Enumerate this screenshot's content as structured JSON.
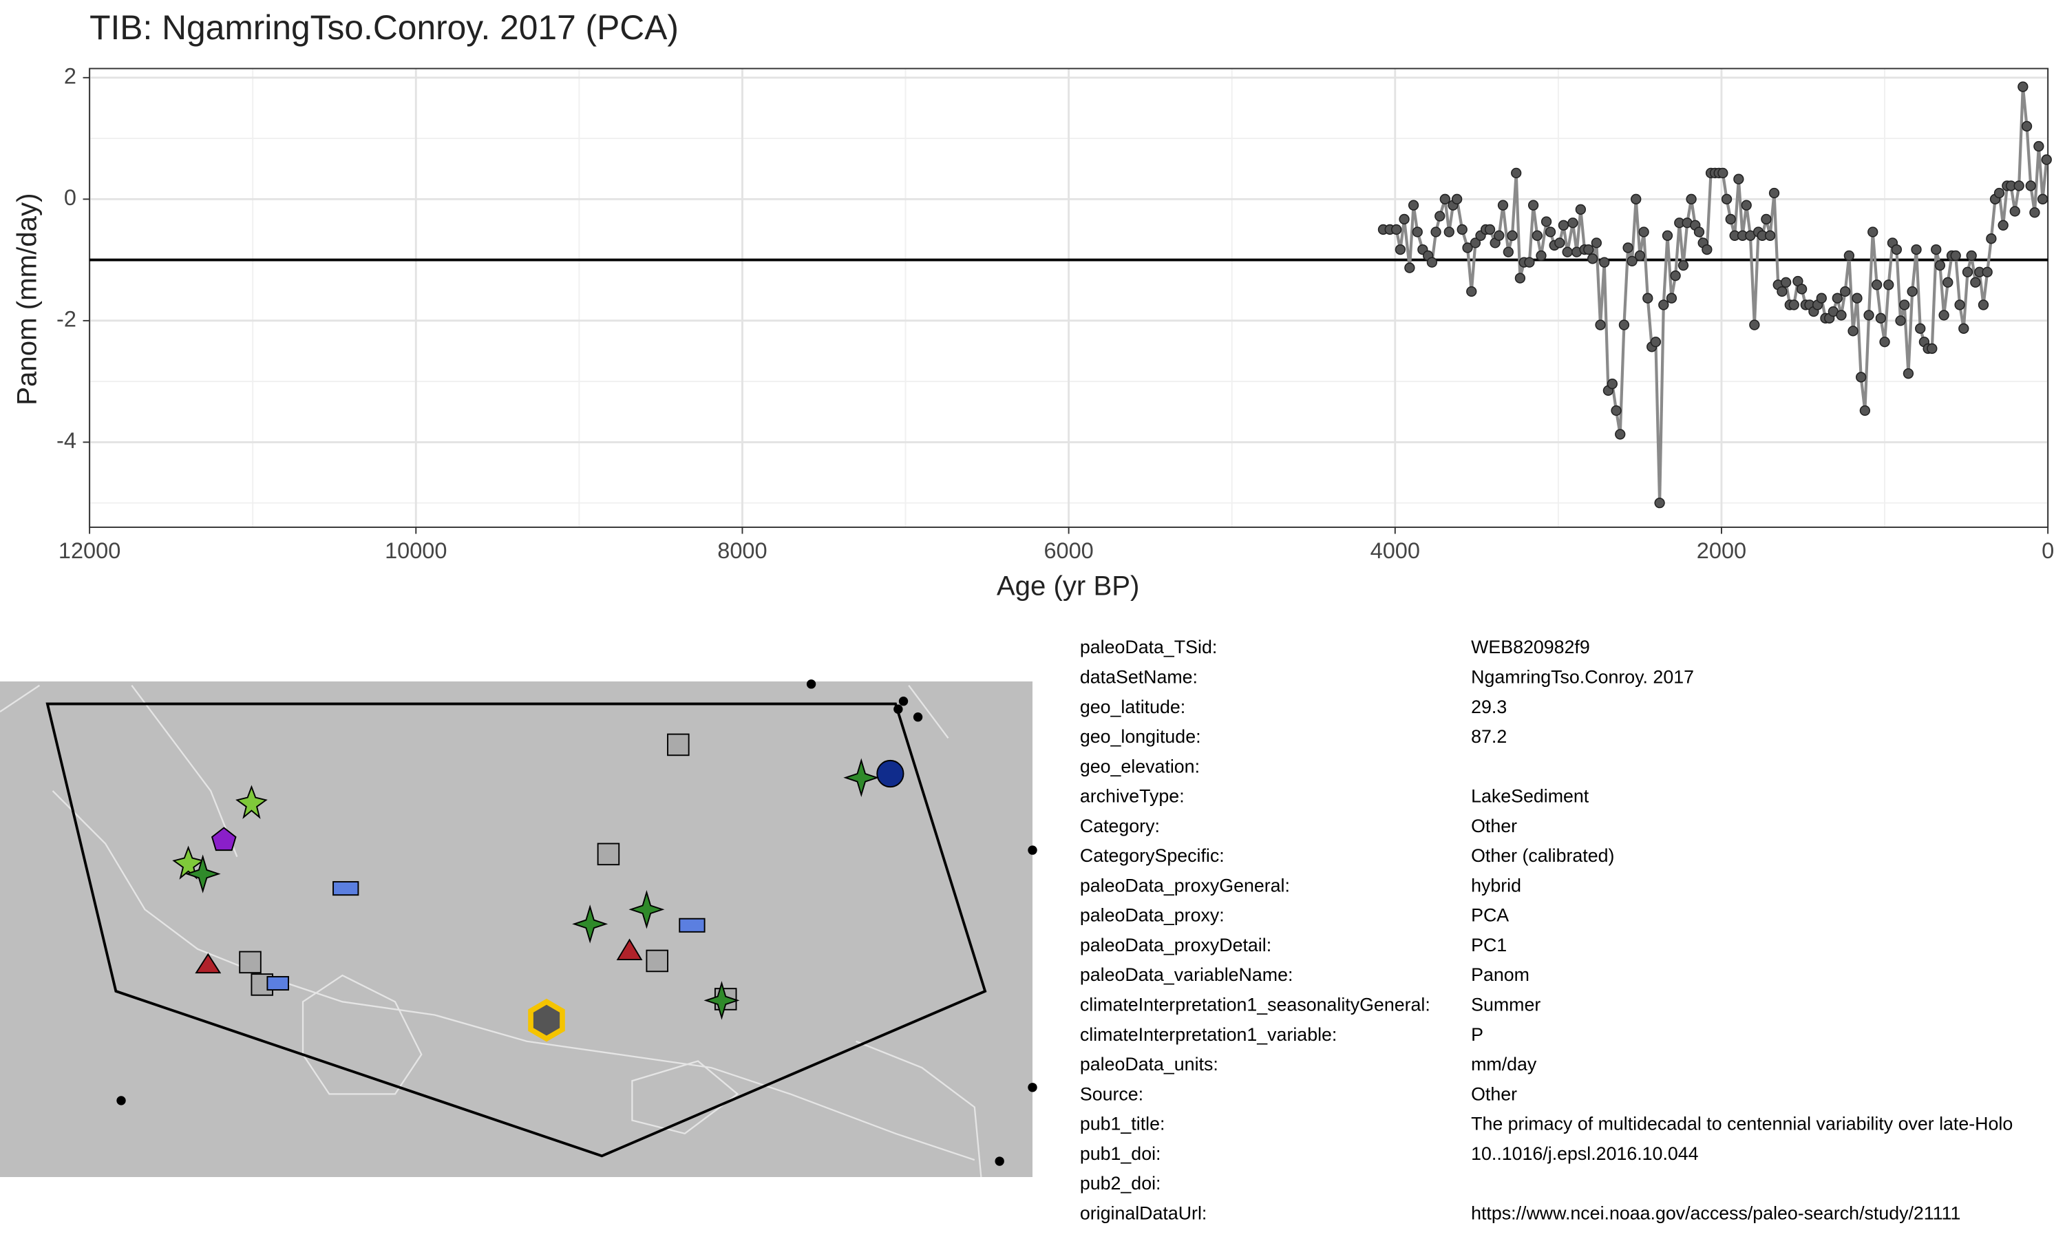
{
  "chart_data": {
    "type": "line",
    "title": "TIB: NgamringTso.Conroy. 2017 (PCA)",
    "x_label": "Age (yr BP)",
    "y_label": "Panom (mm/day)",
    "xlim": [
      12000,
      0
    ],
    "xticks": [
      12000,
      10000,
      8000,
      6000,
      4000,
      2000,
      0
    ],
    "ylim": [
      -5.4,
      2.15
    ],
    "yticks": [
      2,
      0,
      -2,
      -4
    ],
    "grid": true,
    "hline": -1,
    "color": "#555555",
    "x": [
      4073,
      4032,
      3992,
      3968,
      3944,
      3911,
      3887,
      3863,
      3831,
      3798,
      3774,
      3750,
      3726,
      3694,
      3669,
      3645,
      3621,
      3589,
      3556,
      3532,
      3508,
      3476,
      3444,
      3419,
      3387,
      3363,
      3339,
      3306,
      3282,
      3258,
      3234,
      3210,
      3177,
      3153,
      3129,
      3105,
      3073,
      3048,
      3024,
      2992,
      2968,
      2944,
      2911,
      2887,
      2863,
      2839,
      2815,
      2790,
      2766,
      2742,
      2718,
      2694,
      2669,
      2645,
      2621,
      2597,
      2573,
      2548,
      2524,
      2500,
      2476,
      2452,
      2427,
      2403,
      2379,
      2355,
      2331,
      2306,
      2282,
      2258,
      2234,
      2210,
      2185,
      2161,
      2137,
      2113,
      2089,
      2065,
      2040,
      2016,
      1992,
      1968,
      1944,
      1919,
      1895,
      1871,
      1847,
      1823,
      1798,
      1774,
      1750,
      1726,
      1702,
      1677,
      1653,
      1629,
      1605,
      1581,
      1556,
      1532,
      1508,
      1484,
      1460,
      1435,
      1411,
      1387,
      1363,
      1339,
      1315,
      1290,
      1266,
      1242,
      1218,
      1194,
      1169,
      1145,
      1121,
      1097,
      1073,
      1048,
      1024,
      1000,
      976,
      952,
      927,
      903,
      879,
      855,
      831,
      806,
      782,
      758,
      734,
      710,
      685,
      661,
      637,
      613,
      589,
      565,
      540,
      516,
      492,
      468,
      444,
      419,
      395,
      371,
      347,
      323,
      298,
      274,
      250,
      226,
      202,
      177,
      153,
      129,
      105,
      81,
      56,
      32,
      8
    ],
    "values": [
      -0.5,
      -0.5,
      -0.5,
      -0.83,
      -0.33,
      -1.13,
      -0.1,
      -0.54,
      -0.83,
      -0.93,
      -1.04,
      -0.54,
      -0.28,
      0,
      -0.54,
      -0.1,
      0,
      -0.5,
      -0.8,
      -1.52,
      -0.72,
      -0.6,
      -0.5,
      -0.5,
      -0.72,
      -0.6,
      -0.1,
      -0.87,
      -0.6,
      0.43,
      -1.3,
      -1.04,
      -1.04,
      -0.1,
      -0.6,
      -0.93,
      -0.37,
      -0.54,
      -0.76,
      -0.72,
      -0.43,
      -0.87,
      -0.39,
      -0.87,
      -0.17,
      -0.83,
      -0.83,
      -0.98,
      -0.72,
      -2.07,
      -1.04,
      -3.15,
      -3.04,
      -3.48,
      -3.87,
      -2.07,
      -0.8,
      -1.02,
      0,
      -0.93,
      -0.54,
      -1.63,
      -2.43,
      -2.35,
      -5,
      -1.74,
      -0.6,
      -1.63,
      -1.26,
      -0.39,
      -1.09,
      -0.39,
      0,
      -0.43,
      -0.54,
      -0.72,
      -0.83,
      0.43,
      0.43,
      0.43,
      0.43,
      0,
      -0.33,
      -0.6,
      0.33,
      -0.6,
      -0.1,
      -0.6,
      -2.07,
      -0.54,
      -0.6,
      -0.33,
      -0.6,
      0.1,
      -1.41,
      -1.52,
      -1.37,
      -1.74,
      -1.74,
      -1.35,
      -1.48,
      -1.74,
      -1.74,
      -1.85,
      -1.74,
      -1.63,
      -1.96,
      -1.96,
      -1.85,
      -1.63,
      -1.91,
      -1.52,
      -0.93,
      -2.17,
      -1.63,
      -2.93,
      -3.48,
      -1.91,
      -0.54,
      -1.41,
      -1.96,
      -2.35,
      -1.41,
      -0.72,
      -0.83,
      -2.0,
      -1.74,
      -2.87,
      -1.52,
      -0.83,
      -2.13,
      -2.35,
      -2.46,
      -2.46,
      -0.83,
      -1.09,
      -1.91,
      -1.37,
      -0.93,
      -0.93,
      -1.74,
      -2.13,
      -1.2,
      -0.93,
      -1.37,
      -1.2,
      -1.74,
      -1.2,
      -0.65,
      0,
      0.1,
      -0.43,
      0.22,
      0.22,
      -0.2,
      0.22,
      1.85,
      1.2,
      0.22,
      -0.22,
      0.87,
      0,
      0.65
    ]
  },
  "metadata": [
    {
      "key": "paleoData_TSid:",
      "value": "WEB820982f9"
    },
    {
      "key": "dataSetName:",
      "value": "NgamringTso.Conroy. 2017"
    },
    {
      "key": "geo_latitude:",
      "value": "29.3"
    },
    {
      "key": "geo_longitude:",
      "value": "87.2"
    },
    {
      "key": "geo_elevation:"
    },
    {
      "key": "archiveType:",
      "value": "LakeSediment"
    },
    {
      "key": "Category:",
      "value": "Other"
    },
    {
      "key": "CategorySpecific:",
      "value": "Other (calibrated)"
    },
    {
      "key": "paleoData_proxyGeneral:",
      "value": "hybrid"
    },
    {
      "key": "paleoData_proxy:",
      "value": "PCA"
    },
    {
      "key": "paleoData_proxyDetail:",
      "value": "PC1"
    },
    {
      "key": "paleoData_variableName:",
      "value": "Panom"
    },
    {
      "key": "climateInterpretation1_seasonalityGeneral:",
      "value": "Summer"
    },
    {
      "key": "climateInterpretation1_variable:",
      "value": "P"
    },
    {
      "key": "paleoData_units:",
      "value": "mm/day"
    },
    {
      "key": "Source:",
      "value": "Other"
    },
    {
      "key": "pub1_title:",
      "value": "The primacy of multidecadal to centennial variability over late-Holo"
    },
    {
      "key": "pub1_doi:",
      "value": "10..1016/j.epsl.2016.10.044"
    },
    {
      "key": "pub2_doi:"
    },
    {
      "key": "originalDataUrl:",
      "value": "https://www.ncei.noaa.gov/access/paleo-search/study/21111"
    }
  ]
}
